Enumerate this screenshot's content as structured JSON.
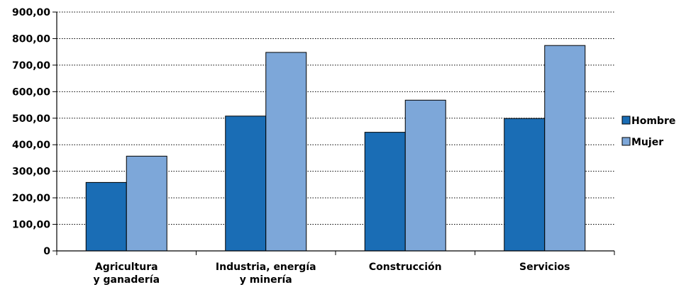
{
  "chart_data": {
    "type": "bar",
    "categories": [
      [
        "Agricultura",
        "y ganadería"
      ],
      [
        "Industria, energía",
        "y minería"
      ],
      [
        "Construcción"
      ],
      [
        "Servicios"
      ]
    ],
    "series": [
      {
        "name": "Hombre",
        "color": "#1a6db5",
        "values": [
          258,
          508,
          447,
          499
        ]
      },
      {
        "name": "Mujer",
        "color": "#7da7d9",
        "values": [
          357,
          748,
          568,
          774
        ]
      }
    ],
    "ylim": [
      0,
      900
    ],
    "yticks": [
      0,
      100,
      200,
      300,
      400,
      500,
      600,
      700,
      800,
      900
    ],
    "ytick_labels": [
      "0",
      "100,00",
      "200,00",
      "300,00",
      "400,00",
      "500,00",
      "600,00",
      "700,00",
      "800,00",
      "900,00"
    ],
    "grid": "horizontal dotted",
    "legend_position": "right"
  }
}
